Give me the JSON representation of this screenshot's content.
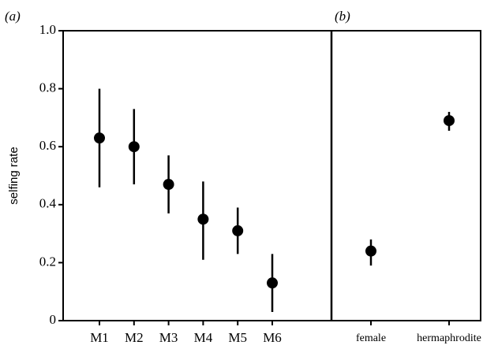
{
  "chart_data": [
    {
      "type": "scatter",
      "panel_label": "(a)",
      "ylabel": "selfing rate",
      "categories": [
        "M1",
        "M2",
        "M3",
        "M4",
        "M5",
        "M6"
      ],
      "values": [
        0.63,
        0.6,
        0.47,
        0.35,
        0.31,
        0.13
      ],
      "lower": [
        0.46,
        0.47,
        0.37,
        0.21,
        0.23,
        0.03
      ],
      "upper": [
        0.8,
        0.73,
        0.57,
        0.48,
        0.39,
        0.23
      ],
      "color": "#000000",
      "ylim": [
        0,
        1
      ],
      "yticks": [
        {
          "value": 1,
          "label": "1.0"
        },
        0.8,
        0.6,
        0.4,
        0.2,
        0
      ]
    },
    {
      "type": "scatter",
      "panel_label": "(b)",
      "categories": [
        "female",
        "hermaphrodite"
      ],
      "values": [
        0.24,
        0.69
      ],
      "lower": [
        0.19,
        0.655
      ],
      "upper": [
        0.28,
        0.72
      ],
      "color": "#000000",
      "ylim": [
        0,
        1
      ]
    }
  ]
}
